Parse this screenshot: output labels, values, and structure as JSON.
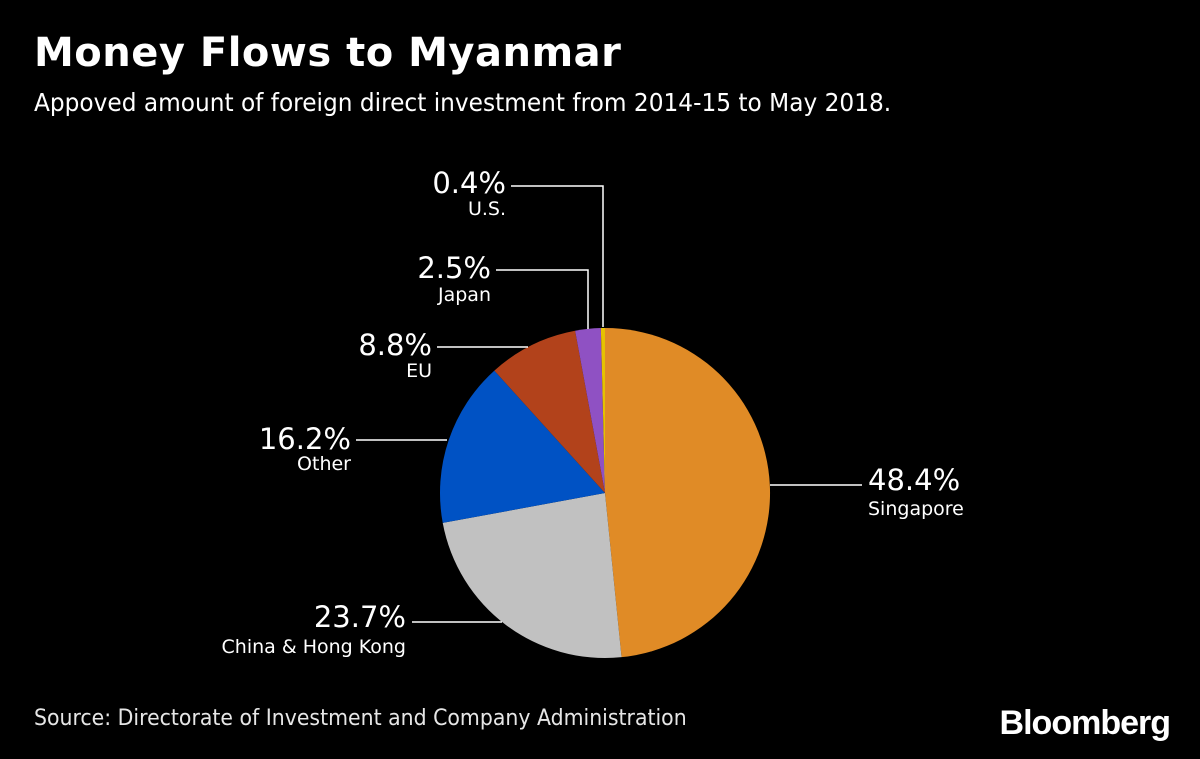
{
  "title": "Money Flows to Myanmar",
  "subtitle": "Appoved amount of foreign direct investment from 2014-15 to May 2018.",
  "source": "Source: Directorate of Investment and Company Administration",
  "logo": "Bloomberg",
  "chart_data": {
    "type": "pie",
    "start": "12 o'clock",
    "direction": "clockwise",
    "slices": [
      {
        "label": "Singapore",
        "value": 48.4,
        "value_label": "48.4%",
        "color": "#e08b26",
        "label_side": "right"
      },
      {
        "label": "China & Hong Kong",
        "value": 23.7,
        "value_label": "23.7%",
        "color": "#c1c1c1",
        "label_side": "left"
      },
      {
        "label": "Other",
        "value": 16.2,
        "value_label": "16.2%",
        "color": "#0052c4",
        "label_side": "left"
      },
      {
        "label": "EU",
        "value": 8.8,
        "value_label": "8.8%",
        "color": "#b2421b",
        "label_side": "left"
      },
      {
        "label": "Japan",
        "value": 2.5,
        "value_label": "2.5%",
        "color": "#8f51c3",
        "label_side": "left"
      },
      {
        "label": "U.S.",
        "value": 0.4,
        "value_label": "0.4%",
        "color": "#e6c200",
        "label_side": "left"
      }
    ]
  }
}
